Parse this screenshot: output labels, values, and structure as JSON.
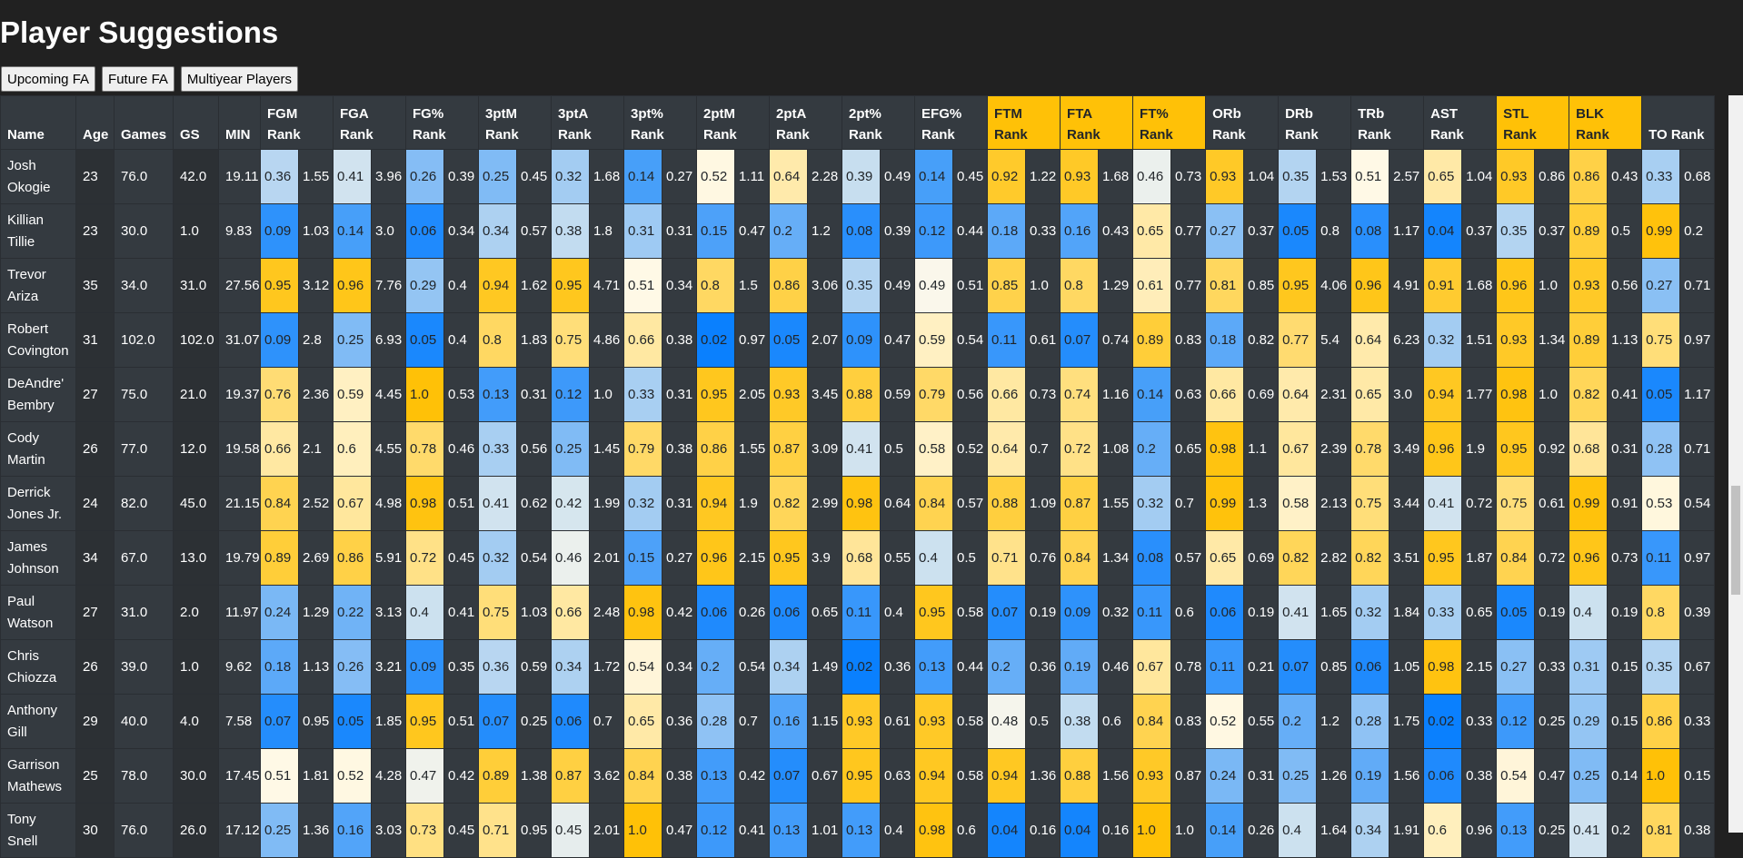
{
  "title": "Player Suggestions",
  "buttons": [
    "Upcoming FA",
    "Future FA",
    "Multiyear Players"
  ],
  "table": {
    "headers": [
      {
        "label": "Name"
      },
      {
        "label": "Age"
      },
      {
        "label": "Games"
      },
      {
        "label": "GS"
      },
      {
        "label": "MIN"
      },
      {
        "label": "FGM Rank"
      },
      {
        "label": "FGA Rank"
      },
      {
        "label": "FG% Rank"
      },
      {
        "label": "3ptM Rank"
      },
      {
        "label": "3ptA Rank"
      },
      {
        "label": "3pt% Rank"
      },
      {
        "label": "2ptM Rank"
      },
      {
        "label": "2ptA Rank"
      },
      {
        "label": "2pt% Rank"
      },
      {
        "label": "EFG% Rank"
      },
      {
        "label": "FTM Rank",
        "highlight": true
      },
      {
        "label": "FTA Rank",
        "highlight": true
      },
      {
        "label": "FT% Rank",
        "highlight": true
      },
      {
        "label": "ORb Rank"
      },
      {
        "label": "DRb Rank"
      },
      {
        "label": "TRb Rank"
      },
      {
        "label": "AST Rank"
      },
      {
        "label": "STL Rank",
        "highlight": true
      },
      {
        "label": "BLK Rank",
        "highlight": true
      },
      {
        "label": "TO Rank"
      }
    ],
    "rows": [
      [
        "Josh Okogie",
        "23",
        "76.0",
        "42.0",
        "19.11",
        "0.36",
        "1.55",
        "0.41",
        "3.96",
        "0.26",
        "0.39",
        "0.25",
        "0.45",
        "0.32",
        "1.68",
        "0.14",
        "0.27",
        "0.52",
        "1.11",
        "0.64",
        "2.28",
        "0.39",
        "0.49",
        "0.14",
        "0.45",
        "0.92",
        "1.22",
        "0.93",
        "1.68",
        "0.46",
        "0.73",
        "0.93",
        "1.04",
        "0.35",
        "1.53",
        "0.51",
        "2.57",
        "0.65",
        "1.04",
        "0.93",
        "0.86",
        "0.86",
        "0.43",
        "0.33",
        "0.68"
      ],
      [
        "Killian Tillie",
        "23",
        "30.0",
        "1.0",
        "9.83",
        "0.09",
        "1.03",
        "0.14",
        "3.0",
        "0.06",
        "0.34",
        "0.34",
        "0.57",
        "0.38",
        "1.8",
        "0.31",
        "0.31",
        "0.15",
        "0.47",
        "0.2",
        "1.2",
        "0.08",
        "0.39",
        "0.12",
        "0.44",
        "0.18",
        "0.33",
        "0.16",
        "0.43",
        "0.65",
        "0.77",
        "0.27",
        "0.37",
        "0.05",
        "0.8",
        "0.08",
        "1.17",
        "0.04",
        "0.37",
        "0.35",
        "0.37",
        "0.89",
        "0.5",
        "0.99",
        "0.2"
      ],
      [
        "Trevor Ariza",
        "35",
        "34.0",
        "31.0",
        "27.56",
        "0.95",
        "3.12",
        "0.96",
        "7.76",
        "0.29",
        "0.4",
        "0.94",
        "1.62",
        "0.95",
        "4.71",
        "0.51",
        "0.34",
        "0.8",
        "1.5",
        "0.86",
        "3.06",
        "0.35",
        "0.49",
        "0.49",
        "0.51",
        "0.85",
        "1.0",
        "0.8",
        "1.29",
        "0.61",
        "0.77",
        "0.81",
        "0.85",
        "0.95",
        "4.06",
        "0.96",
        "4.91",
        "0.91",
        "1.68",
        "0.96",
        "1.0",
        "0.93",
        "0.56",
        "0.27",
        "0.71"
      ],
      [
        "Robert Covington",
        "31",
        "102.0",
        "102.0",
        "31.07",
        "0.09",
        "2.8",
        "0.25",
        "6.93",
        "0.05",
        "0.4",
        "0.8",
        "1.83",
        "0.75",
        "4.86",
        "0.66",
        "0.38",
        "0.02",
        "0.97",
        "0.05",
        "2.07",
        "0.09",
        "0.47",
        "0.59",
        "0.54",
        "0.11",
        "0.61",
        "0.07",
        "0.74",
        "0.89",
        "0.83",
        "0.18",
        "0.82",
        "0.77",
        "5.4",
        "0.64",
        "6.23",
        "0.32",
        "1.51",
        "0.93",
        "1.34",
        "0.89",
        "1.13",
        "0.75",
        "0.97"
      ],
      [
        "DeAndre' Bembry",
        "27",
        "75.0",
        "21.0",
        "19.37",
        "0.76",
        "2.36",
        "0.59",
        "4.45",
        "1.0",
        "0.53",
        "0.13",
        "0.31",
        "0.12",
        "1.0",
        "0.33",
        "0.31",
        "0.95",
        "2.05",
        "0.93",
        "3.45",
        "0.88",
        "0.59",
        "0.79",
        "0.56",
        "0.66",
        "0.73",
        "0.74",
        "1.16",
        "0.14",
        "0.63",
        "0.66",
        "0.69",
        "0.64",
        "2.31",
        "0.65",
        "3.0",
        "0.94",
        "1.77",
        "0.98",
        "1.0",
        "0.82",
        "0.41",
        "0.05",
        "1.17"
      ],
      [
        "Cody Martin",
        "26",
        "77.0",
        "12.0",
        "19.58",
        "0.66",
        "2.1",
        "0.6",
        "4.55",
        "0.78",
        "0.46",
        "0.33",
        "0.56",
        "0.25",
        "1.45",
        "0.79",
        "0.38",
        "0.86",
        "1.55",
        "0.87",
        "3.09",
        "0.41",
        "0.5",
        "0.58",
        "0.52",
        "0.64",
        "0.7",
        "0.72",
        "1.08",
        "0.2",
        "0.65",
        "0.98",
        "1.1",
        "0.67",
        "2.39",
        "0.78",
        "3.49",
        "0.96",
        "1.9",
        "0.95",
        "0.92",
        "0.68",
        "0.31",
        "0.28",
        "0.71"
      ],
      [
        "Derrick Jones Jr.",
        "24",
        "82.0",
        "45.0",
        "21.15",
        "0.84",
        "2.52",
        "0.67",
        "4.98",
        "0.98",
        "0.51",
        "0.41",
        "0.62",
        "0.42",
        "1.99",
        "0.32",
        "0.31",
        "0.94",
        "1.9",
        "0.82",
        "2.99",
        "0.98",
        "0.64",
        "0.84",
        "0.57",
        "0.88",
        "1.09",
        "0.87",
        "1.55",
        "0.32",
        "0.7",
        "0.99",
        "1.3",
        "0.58",
        "2.13",
        "0.75",
        "3.44",
        "0.41",
        "0.72",
        "0.75",
        "0.61",
        "0.99",
        "0.91",
        "0.53",
        "0.54"
      ],
      [
        "James Johnson",
        "34",
        "67.0",
        "13.0",
        "19.79",
        "0.89",
        "2.69",
        "0.86",
        "5.91",
        "0.72",
        "0.45",
        "0.32",
        "0.54",
        "0.46",
        "2.01",
        "0.15",
        "0.27",
        "0.96",
        "2.15",
        "0.95",
        "3.9",
        "0.68",
        "0.55",
        "0.4",
        "0.5",
        "0.71",
        "0.76",
        "0.84",
        "1.34",
        "0.08",
        "0.57",
        "0.65",
        "0.69",
        "0.82",
        "2.82",
        "0.82",
        "3.51",
        "0.95",
        "1.87",
        "0.84",
        "0.72",
        "0.96",
        "0.73",
        "0.11",
        "0.97"
      ],
      [
        "Paul Watson",
        "27",
        "31.0",
        "2.0",
        "11.97",
        "0.24",
        "1.29",
        "0.22",
        "3.13",
        "0.4",
        "0.41",
        "0.75",
        "1.03",
        "0.66",
        "2.48",
        "0.98",
        "0.42",
        "0.06",
        "0.26",
        "0.06",
        "0.65",
        "0.11",
        "0.4",
        "0.95",
        "0.58",
        "0.07",
        "0.19",
        "0.09",
        "0.32",
        "0.11",
        "0.6",
        "0.06",
        "0.19",
        "0.41",
        "1.65",
        "0.32",
        "1.84",
        "0.33",
        "0.65",
        "0.05",
        "0.19",
        "0.4",
        "0.19",
        "0.8",
        "0.39"
      ],
      [
        "Chris Chiozza",
        "26",
        "39.0",
        "1.0",
        "9.62",
        "0.18",
        "1.13",
        "0.26",
        "3.21",
        "0.09",
        "0.35",
        "0.36",
        "0.59",
        "0.34",
        "1.72",
        "0.54",
        "0.34",
        "0.2",
        "0.54",
        "0.34",
        "1.49",
        "0.02",
        "0.36",
        "0.13",
        "0.44",
        "0.2",
        "0.36",
        "0.19",
        "0.46",
        "0.67",
        "0.78",
        "0.11",
        "0.21",
        "0.07",
        "0.85",
        "0.06",
        "1.05",
        "0.98",
        "2.15",
        "0.27",
        "0.33",
        "0.31",
        "0.15",
        "0.35",
        "0.67"
      ],
      [
        "Anthony Gill",
        "29",
        "40.0",
        "4.0",
        "7.58",
        "0.07",
        "0.95",
        "0.05",
        "1.85",
        "0.95",
        "0.51",
        "0.07",
        "0.25",
        "0.06",
        "0.7",
        "0.65",
        "0.36",
        "0.28",
        "0.7",
        "0.16",
        "1.15",
        "0.93",
        "0.61",
        "0.93",
        "0.58",
        "0.48",
        "0.5",
        "0.38",
        "0.6",
        "0.84",
        "0.83",
        "0.52",
        "0.55",
        "0.2",
        "1.2",
        "0.28",
        "1.75",
        "0.02",
        "0.33",
        "0.12",
        "0.25",
        "0.29",
        "0.15",
        "0.86",
        "0.33"
      ],
      [
        "Garrison Mathews",
        "25",
        "78.0",
        "30.0",
        "17.45",
        "0.51",
        "1.81",
        "0.52",
        "4.28",
        "0.47",
        "0.42",
        "0.89",
        "1.38",
        "0.87",
        "3.62",
        "0.84",
        "0.38",
        "0.13",
        "0.42",
        "0.07",
        "0.67",
        "0.95",
        "0.63",
        "0.94",
        "0.58",
        "0.94",
        "1.36",
        "0.88",
        "1.56",
        "0.93",
        "0.87",
        "0.24",
        "0.31",
        "0.25",
        "1.26",
        "0.19",
        "1.56",
        "0.06",
        "0.38",
        "0.54",
        "0.47",
        "0.25",
        "0.14",
        "1.0",
        "0.15"
      ],
      [
        "Tony Snell",
        "30",
        "76.0",
        "26.0",
        "17.12",
        "0.25",
        "1.36",
        "0.16",
        "3.03",
        "0.73",
        "0.45",
        "0.71",
        "0.95",
        "0.45",
        "2.01",
        "1.0",
        "0.47",
        "0.12",
        "0.41",
        "0.13",
        "1.01",
        "0.13",
        "0.4",
        "0.98",
        "0.6",
        "0.04",
        "0.16",
        "0.04",
        "0.16",
        "1.0",
        "1.0",
        "0.14",
        "0.26",
        "0.4",
        "1.64",
        "0.34",
        "1.91",
        "0.6",
        "0.96",
        "0.13",
        "0.25",
        "0.41",
        "0.2",
        "0.81",
        "0.38"
      ]
    ]
  }
}
